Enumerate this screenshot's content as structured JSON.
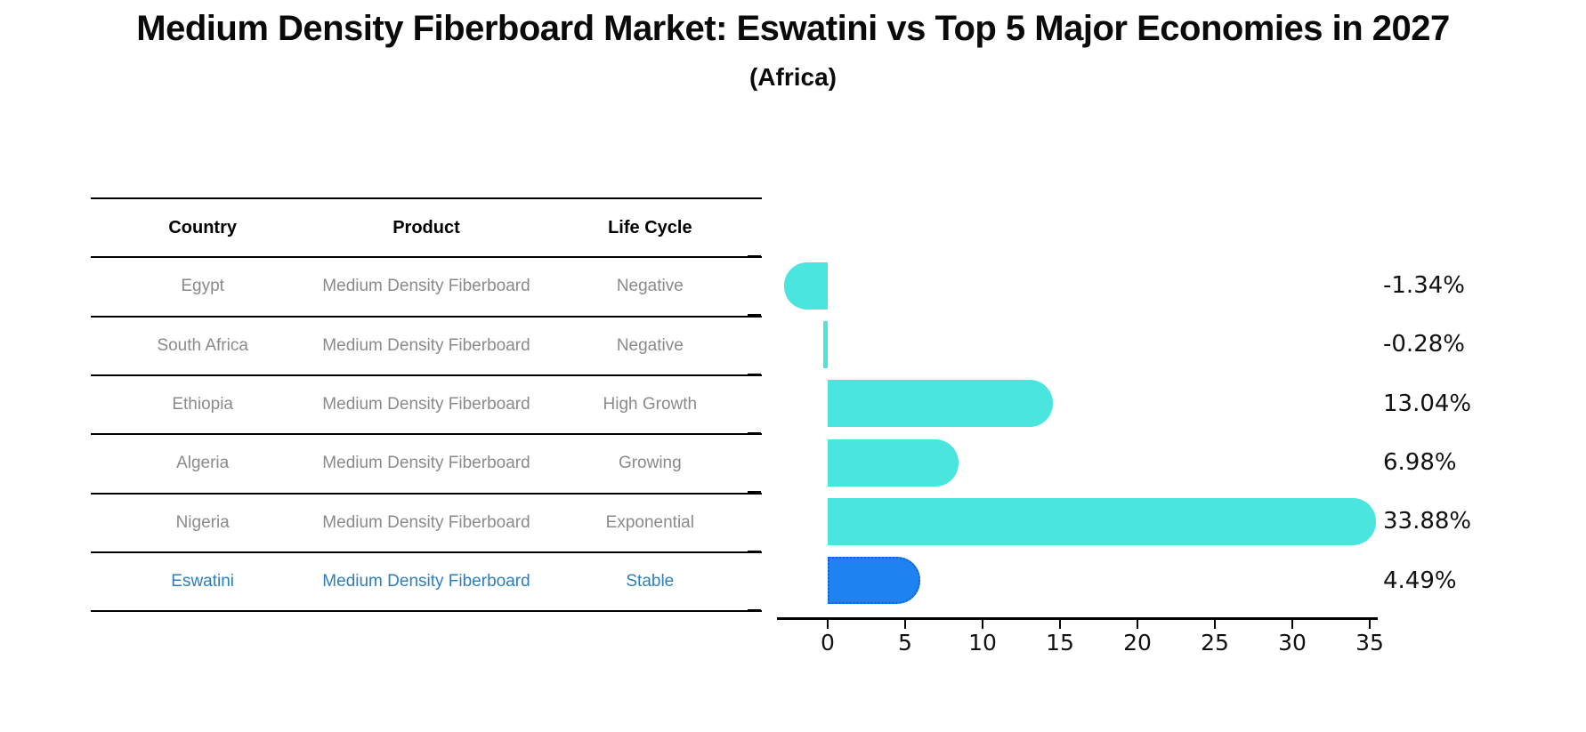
{
  "title": "Medium Density Fiberboard Market: Eswatini vs Top 5 Major Economies in 2027",
  "subtitle": "(Africa)",
  "table": {
    "headers": [
      "Country",
      "Product",
      "Life Cycle"
    ],
    "rows": [
      {
        "country": "Egypt",
        "product": "Medium Density Fiberboard",
        "life_cycle": "Negative",
        "highlighted": false
      },
      {
        "country": "South Africa",
        "product": "Medium Density Fiberboard",
        "life_cycle": "Negative",
        "highlighted": false
      },
      {
        "country": "Ethiopia",
        "product": "Medium Density Fiberboard",
        "life_cycle": "High Growth",
        "highlighted": false
      },
      {
        "country": "Algeria",
        "product": "Medium Density Fiberboard",
        "life_cycle": "Growing",
        "highlighted": false
      },
      {
        "country": "Nigeria",
        "product": "Medium Density Fiberboard",
        "life_cycle": "Exponential",
        "highlighted": false
      },
      {
        "country": "Eswatini",
        "product": "Medium Density Fiberboard",
        "life_cycle": "Stable",
        "highlighted": true
      }
    ]
  },
  "chart_data": {
    "type": "bar",
    "orientation": "horizontal",
    "categories": [
      "Egypt",
      "South Africa",
      "Ethiopia",
      "Algeria",
      "Nigeria",
      "Eswatini"
    ],
    "values": [
      -1.34,
      -0.28,
      13.04,
      6.98,
      33.88,
      4.49
    ],
    "value_labels": [
      "-1.34%",
      "-0.28%",
      "13.04%",
      "6.98%",
      "33.88%",
      "4.49%"
    ],
    "xticks": [
      0,
      5,
      10,
      15,
      20,
      25,
      30,
      35
    ],
    "xlim": [
      -3.3,
      35.5
    ],
    "grid": false,
    "legend": false,
    "bar_color": "#4ae5de",
    "highlight_color": "#1e82f0",
    "highlight_border_color": "#0e62d6",
    "highlight_index": 5
  },
  "colors": {
    "title_text": "#0a0a0a",
    "table_text": "#8a8a8a",
    "highlight_row_text": "#2e7ebf",
    "axis": "#000000"
  }
}
